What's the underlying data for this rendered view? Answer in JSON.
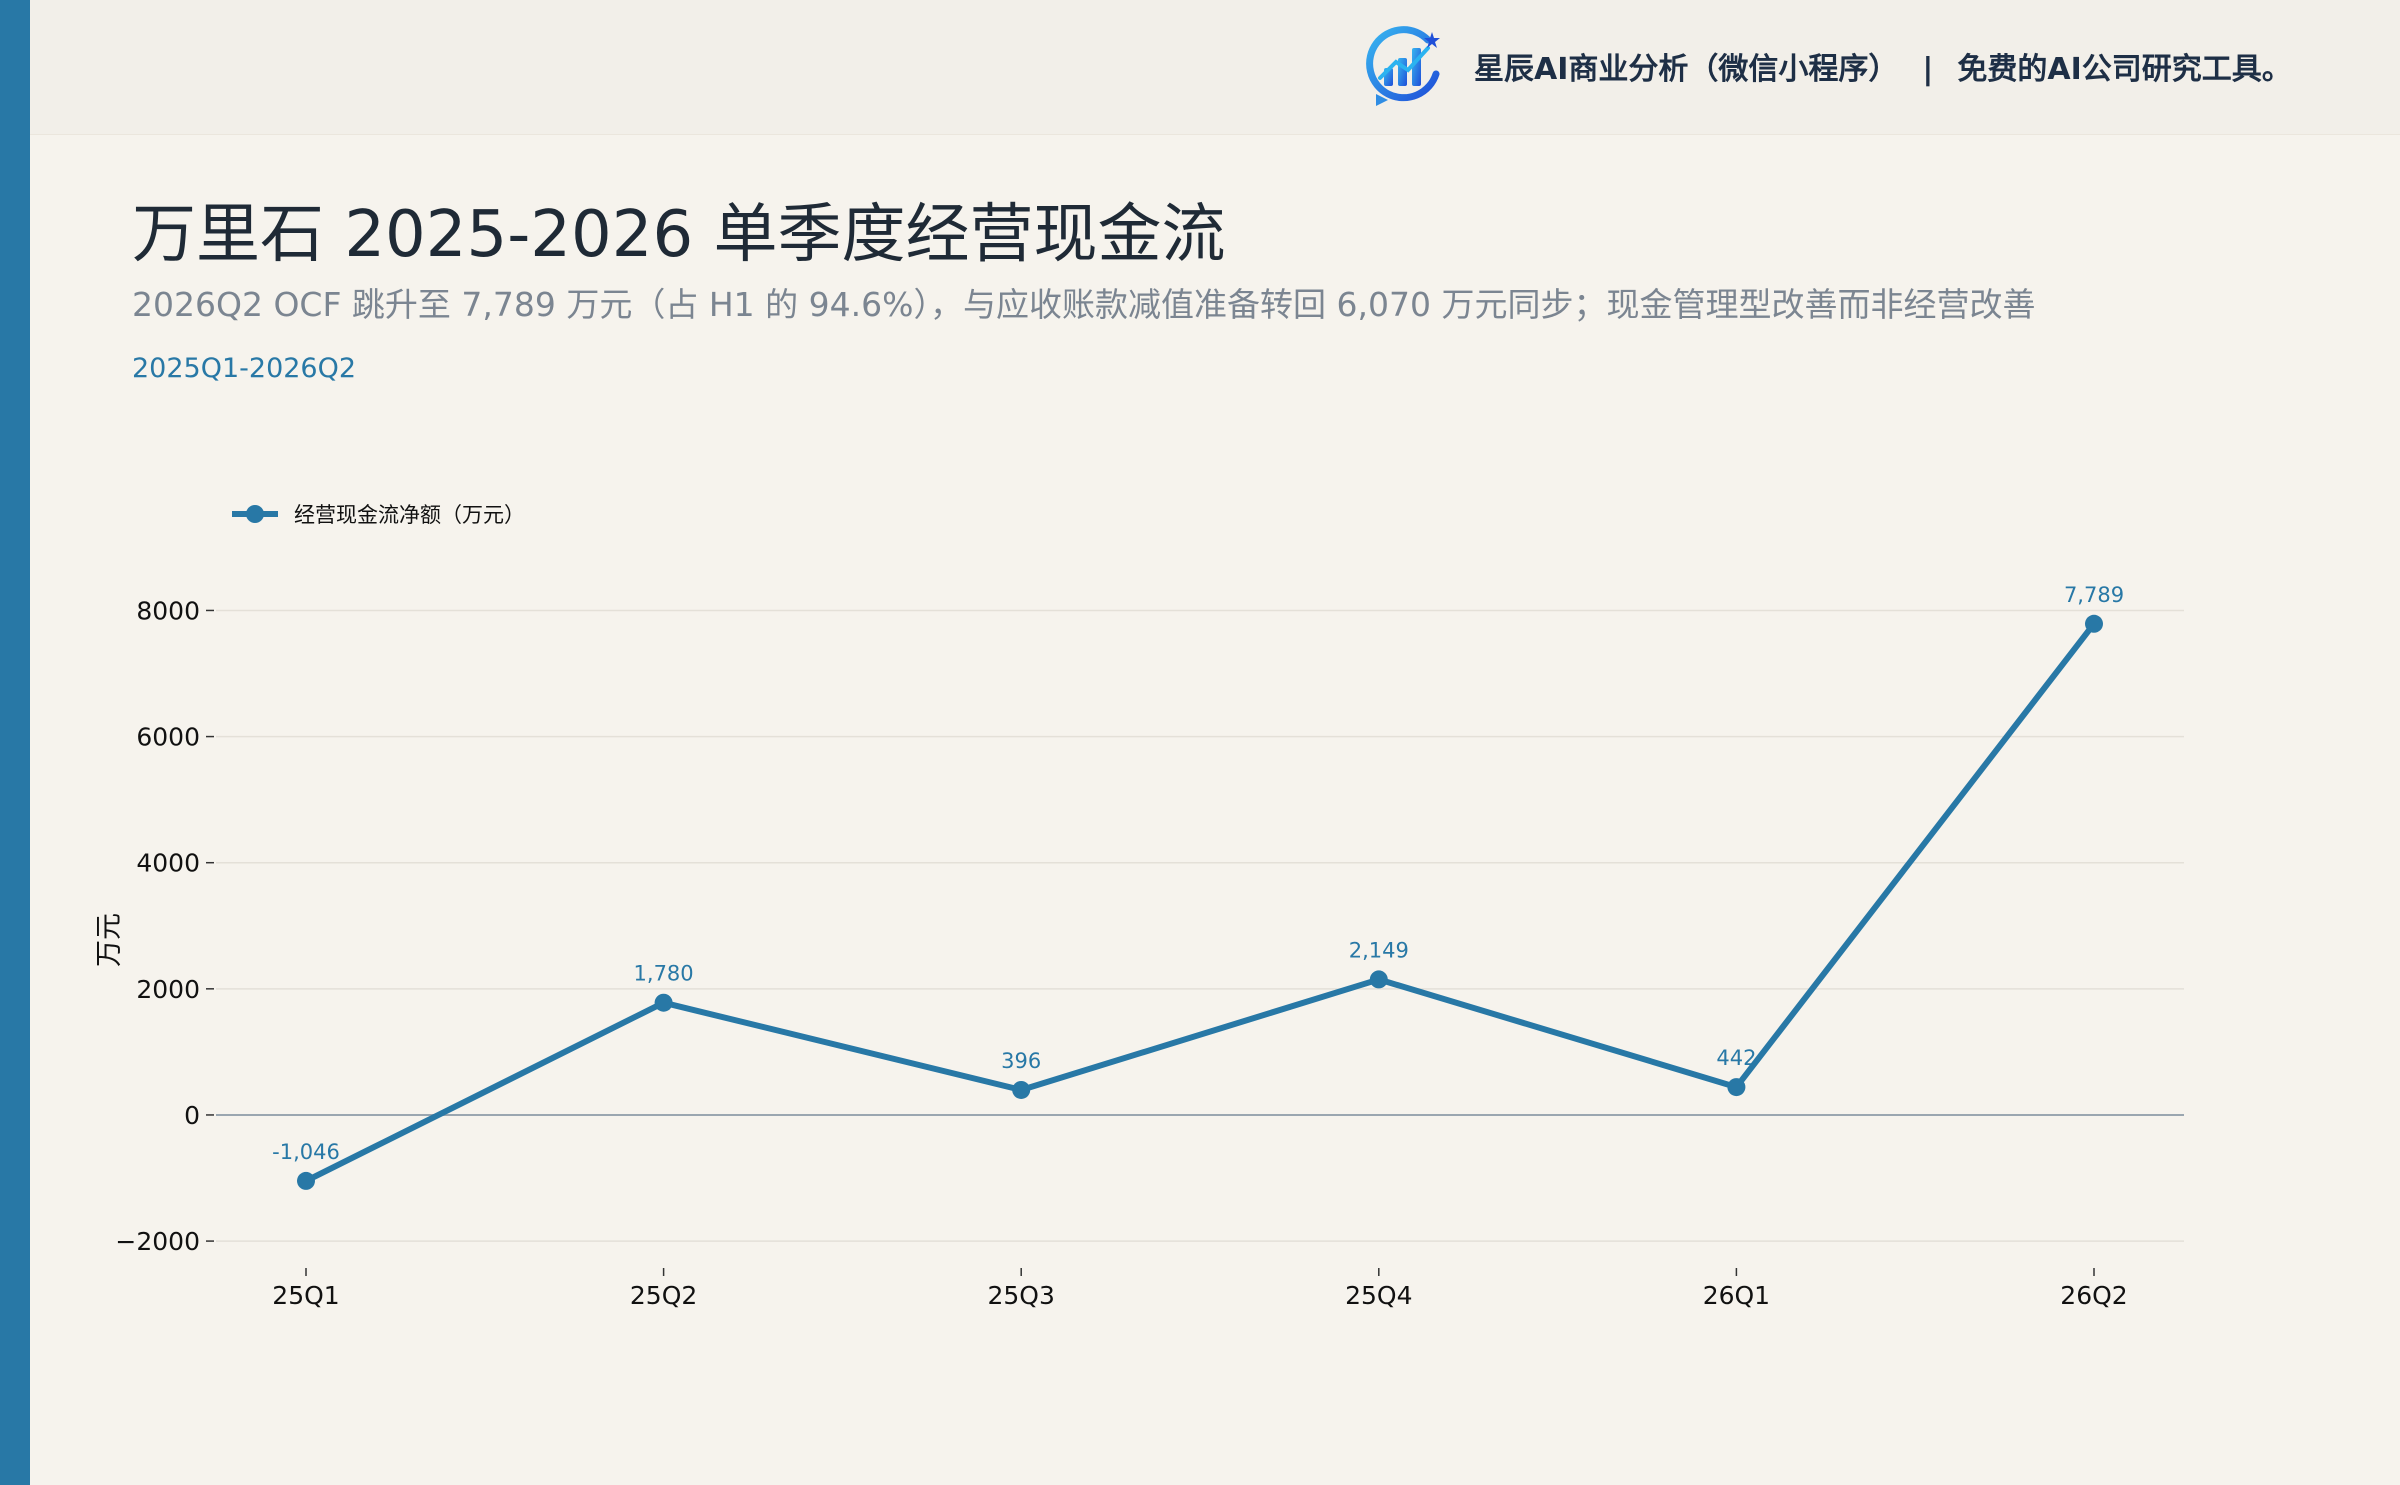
{
  "header": {
    "logo_icon": "bar-chart-logo-icon",
    "brand": "星辰AI商业分析（微信小程序）",
    "separator": "|",
    "slogan": "免费的AI公司研究工具。"
  },
  "title": "万里石 2025-2026 单季度经营现金流",
  "subtitle": "2026Q2 OCF 跳升至 7,789 万元（占 H1 的 94.6%），与应收账款减值准备转回 6,070 万元同步；现金管理型改善而非经营改善",
  "range_label": "2025Q1-2026Q2",
  "colors": {
    "accent": "#2878a6",
    "background": "#f6f3ed",
    "header_background": "#f2efe9"
  },
  "chart_data": {
    "type": "line",
    "categories": [
      "25Q1",
      "25Q2",
      "25Q3",
      "25Q4",
      "26Q1",
      "26Q2"
    ],
    "series": [
      {
        "name": "经营现金流净额（万元）",
        "values": [
          -1046,
          1780,
          396,
          2149,
          442,
          7789
        ],
        "data_labels": [
          "-1,046",
          "1,780",
          "396",
          "2,149",
          "442",
          "7,789"
        ],
        "color": "#2878a6",
        "marker": "circle"
      }
    ],
    "ylabel": "万元",
    "ylim": [
      -2300,
      8800
    ],
    "yticks": [
      -2000,
      0,
      2000,
      4000,
      6000,
      8000
    ],
    "ytick_labels": [
      "−2000",
      "0",
      "2000",
      "4000",
      "6000",
      "8000"
    ],
    "grid": "horizontal",
    "zero_line": true,
    "legend": "top-left"
  }
}
